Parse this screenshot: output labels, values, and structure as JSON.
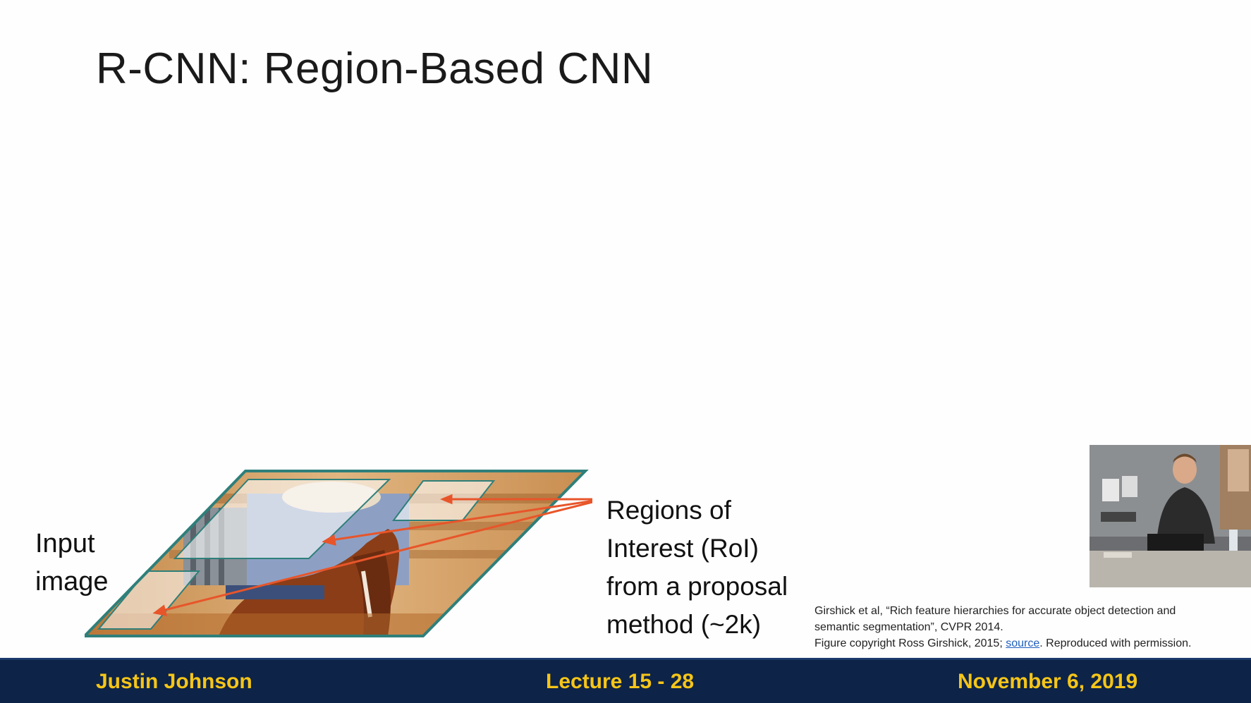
{
  "slide": {
    "title": "R-CNN: Region-Based CNN",
    "input_label_line1": "Input",
    "input_label_line2": "image",
    "regions_label": [
      "Regions of",
      "Interest (RoI)",
      "from a proposal",
      "method (~2k)"
    ],
    "citation": {
      "line1": "Girshick et al, “Rich feature hierarchies for accurate object detection and",
      "line2": "semantic segmentation”, CVPR 2014.",
      "line3_prefix": "Figure copyright Ross Girshick, 2015; ",
      "line3_link": "source",
      "line3_suffix": ". Reproduced with permission."
    }
  },
  "footer": {
    "author": "Justin Johnson",
    "lecture": "Lecture 15 - 28",
    "date": "November 6, 2019"
  },
  "colors": {
    "footer_bg": "#0d2347",
    "footer_text": "#f5c518",
    "arrow": "#e8552a",
    "figure_border": "#2f7f7a"
  }
}
